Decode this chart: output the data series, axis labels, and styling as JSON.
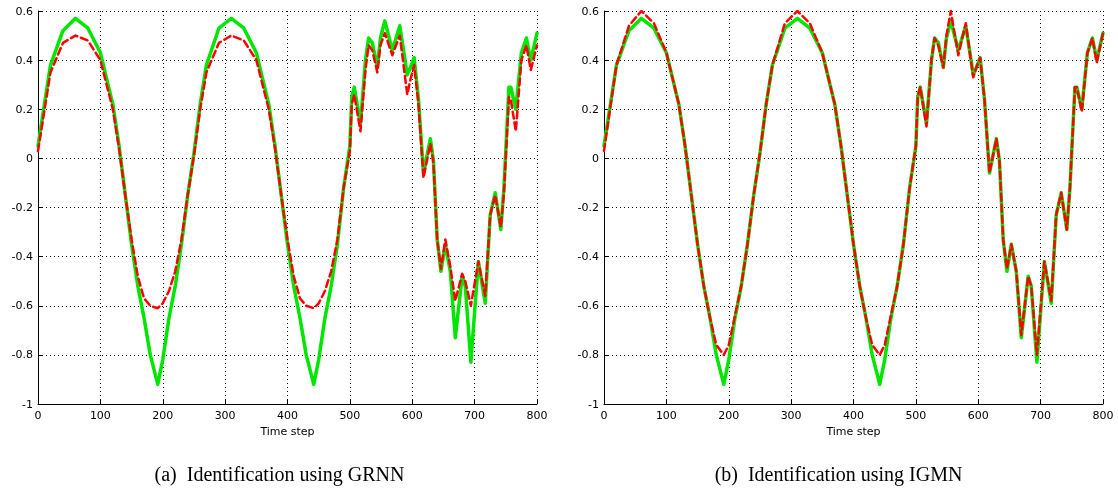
{
  "chart_data": [
    {
      "type": "line",
      "title": "(a)  Identification using GRNN",
      "xlabel": "Time step",
      "xlim": [
        0,
        800
      ],
      "xticks": [
        0,
        100,
        200,
        300,
        400,
        500,
        600,
        700,
        800
      ],
      "ylim": [
        -1,
        0.6
      ],
      "yticks": [
        -1,
        -0.8,
        -0.6,
        -0.4,
        -0.2,
        0,
        0.2,
        0.4,
        0.6
      ],
      "grid": true,
      "marker": "none",
      "x": [
        0,
        20,
        40,
        60,
        80,
        100,
        120,
        130,
        140,
        150,
        160,
        170,
        180,
        192,
        200,
        210,
        220,
        230,
        240,
        250,
        260,
        270,
        290,
        310,
        330,
        350,
        370,
        380,
        390,
        400,
        410,
        420,
        430,
        442,
        450,
        460,
        470,
        480,
        490,
        500,
        503,
        507,
        517,
        525,
        530,
        536,
        544,
        549,
        556,
        568,
        580,
        592,
        597,
        603,
        610,
        618,
        629,
        634,
        640,
        646,
        653,
        661,
        669,
        680,
        685,
        694,
        706,
        717,
        725,
        733,
        742,
        747,
        755,
        758,
        766,
        775,
        783,
        790,
        800
      ],
      "series": [
        {
          "color": "#00e600",
          "line_style": "solid",
          "values": [
            0.05,
            0.38,
            0.52,
            0.57,
            0.53,
            0.43,
            0.22,
            0.05,
            -0.15,
            -0.35,
            -0.52,
            -0.65,
            -0.8,
            -0.92,
            -0.82,
            -0.65,
            -0.52,
            -0.35,
            -0.15,
            0.02,
            0.22,
            0.38,
            0.53,
            0.57,
            0.53,
            0.43,
            0.22,
            0.05,
            -0.15,
            -0.35,
            -0.52,
            -0.65,
            -0.8,
            -0.92,
            -0.82,
            -0.65,
            -0.52,
            -0.35,
            -0.12,
            0.05,
            0.25,
            0.29,
            0.14,
            0.4,
            0.49,
            0.47,
            0.37,
            0.49,
            0.56,
            0.44,
            0.54,
            0.34,
            0.37,
            0.41,
            0.24,
            -0.06,
            0.08,
            -0.01,
            -0.33,
            -0.46,
            -0.35,
            -0.46,
            -0.73,
            -0.48,
            -0.52,
            -0.83,
            -0.42,
            -0.59,
            -0.23,
            -0.14,
            -0.29,
            -0.12,
            0.29,
            0.29,
            0.2,
            0.43,
            0.49,
            0.4,
            0.51
          ]
        },
        {
          "color": "#ff0000",
          "line_style": "dashed",
          "values": [
            0.03,
            0.35,
            0.47,
            0.5,
            0.48,
            0.4,
            0.2,
            0.04,
            -0.15,
            -0.33,
            -0.48,
            -0.57,
            -0.6,
            -0.61,
            -0.59,
            -0.54,
            -0.46,
            -0.33,
            -0.15,
            0.01,
            0.2,
            0.35,
            0.47,
            0.5,
            0.48,
            0.4,
            0.2,
            0.04,
            -0.15,
            -0.33,
            -0.48,
            -0.57,
            -0.6,
            -0.61,
            -0.59,
            -0.54,
            -0.46,
            -0.33,
            -0.12,
            0.03,
            0.22,
            0.26,
            0.11,
            0.36,
            0.46,
            0.44,
            0.35,
            0.46,
            0.51,
            0.42,
            0.5,
            0.26,
            0.32,
            0.38,
            0.22,
            -0.08,
            0.06,
            -0.02,
            -0.33,
            -0.45,
            -0.33,
            -0.44,
            -0.58,
            -0.47,
            -0.5,
            -0.6,
            -0.42,
            -0.56,
            -0.23,
            -0.15,
            -0.28,
            -0.14,
            0.25,
            0.24,
            0.11,
            0.4,
            0.46,
            0.36,
            0.46
          ]
        }
      ]
    },
    {
      "type": "line",
      "title": "(b)  Identification using IGMN",
      "xlabel": "Time step",
      "xlim": [
        0,
        800
      ],
      "xticks": [
        0,
        100,
        200,
        300,
        400,
        500,
        600,
        700,
        800
      ],
      "ylim": [
        -1,
        0.6
      ],
      "yticks": [
        -1,
        -0.8,
        -0.6,
        -0.4,
        -0.2,
        0,
        0.2,
        0.4,
        0.6
      ],
      "grid": true,
      "marker": "none",
      "x": [
        0,
        20,
        40,
        60,
        80,
        100,
        120,
        130,
        140,
        150,
        160,
        170,
        180,
        192,
        200,
        210,
        220,
        230,
        240,
        250,
        260,
        270,
        290,
        310,
        330,
        350,
        370,
        380,
        390,
        400,
        410,
        420,
        430,
        442,
        450,
        460,
        470,
        480,
        490,
        500,
        503,
        507,
        517,
        525,
        530,
        536,
        544,
        549,
        556,
        568,
        580,
        592,
        597,
        603,
        610,
        618,
        629,
        634,
        640,
        646,
        653,
        661,
        669,
        680,
        685,
        694,
        706,
        717,
        725,
        733,
        742,
        747,
        755,
        758,
        766,
        775,
        783,
        790,
        800
      ],
      "series": [
        {
          "color": "#00e600",
          "line_style": "solid",
          "values": [
            0.05,
            0.38,
            0.52,
            0.57,
            0.53,
            0.43,
            0.22,
            0.05,
            -0.15,
            -0.35,
            -0.52,
            -0.65,
            -0.8,
            -0.92,
            -0.82,
            -0.65,
            -0.52,
            -0.35,
            -0.15,
            0.02,
            0.22,
            0.38,
            0.53,
            0.57,
            0.53,
            0.43,
            0.22,
            0.05,
            -0.15,
            -0.35,
            -0.52,
            -0.65,
            -0.8,
            -0.92,
            -0.82,
            -0.65,
            -0.52,
            -0.35,
            -0.12,
            0.05,
            0.25,
            0.29,
            0.14,
            0.4,
            0.49,
            0.47,
            0.37,
            0.49,
            0.56,
            0.44,
            0.54,
            0.34,
            0.37,
            0.41,
            0.24,
            -0.06,
            0.08,
            -0.01,
            -0.33,
            -0.46,
            -0.35,
            -0.46,
            -0.73,
            -0.48,
            -0.52,
            -0.83,
            -0.42,
            -0.59,
            -0.23,
            -0.14,
            -0.29,
            -0.12,
            0.29,
            0.29,
            0.2,
            0.43,
            0.49,
            0.4,
            0.51
          ]
        },
        {
          "color": "#ff0000",
          "line_style": "dashed",
          "values": [
            0.03,
            0.38,
            0.54,
            0.6,
            0.55,
            0.43,
            0.22,
            0.05,
            -0.15,
            -0.35,
            -0.52,
            -0.65,
            -0.76,
            -0.8,
            -0.76,
            -0.64,
            -0.52,
            -0.35,
            -0.15,
            0.02,
            0.22,
            0.38,
            0.55,
            0.6,
            0.55,
            0.43,
            0.22,
            0.05,
            -0.15,
            -0.35,
            -0.52,
            -0.65,
            -0.76,
            -0.8,
            -0.76,
            -0.64,
            -0.52,
            -0.35,
            -0.12,
            0.05,
            0.25,
            0.29,
            0.13,
            0.4,
            0.49,
            0.46,
            0.37,
            0.5,
            0.6,
            0.42,
            0.55,
            0.33,
            0.37,
            0.41,
            0.24,
            -0.06,
            0.08,
            -0.01,
            -0.33,
            -0.45,
            -0.35,
            -0.46,
            -0.72,
            -0.48,
            -0.52,
            -0.8,
            -0.42,
            -0.58,
            -0.23,
            -0.14,
            -0.29,
            -0.12,
            0.29,
            0.29,
            0.19,
            0.43,
            0.49,
            0.39,
            0.51
          ]
        }
      ]
    }
  ]
}
